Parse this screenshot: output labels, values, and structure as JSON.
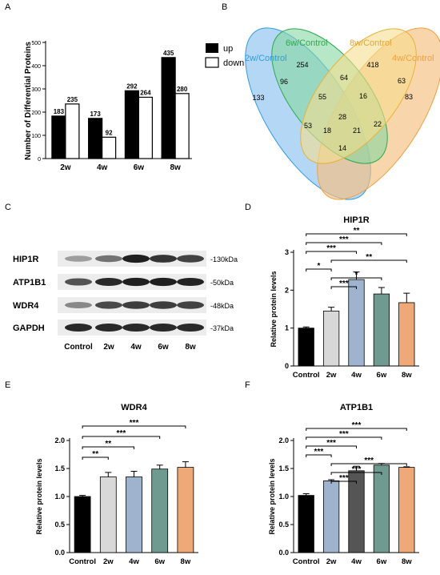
{
  "panels": {
    "A": "A",
    "B": "B",
    "C": "C",
    "D": "D",
    "E": "E",
    "F": "F"
  },
  "chart_data": [
    {
      "id": "A",
      "type": "bar",
      "title": "",
      "xlabel": "",
      "ylabel": "Number of Differential Proteins",
      "categories": [
        "2w",
        "4w",
        "6w",
        "8w"
      ],
      "yticks": [
        "0",
        "100",
        "200",
        "300",
        "400",
        "500"
      ],
      "ylim": [
        0,
        500
      ],
      "legend_position": "right",
      "series": [
        {
          "name": "up",
          "values": [
            183,
            173,
            292,
            435
          ],
          "color": "#000000"
        },
        {
          "name": "down",
          "values": [
            235,
            92,
            264,
            280
          ],
          "color": "#ffffff"
        }
      ],
      "value_labels": {
        "up": [
          "183",
          "173",
          "292",
          "435"
        ],
        "down": [
          "235",
          "92",
          "264",
          "280"
        ]
      }
    },
    {
      "id": "B",
      "type": "venn",
      "sets": [
        {
          "name": "2w/Control",
          "color": "#2f9be0",
          "fill": "#8cc2f0"
        },
        {
          "name": "6w/Control",
          "color": "#2fa84f",
          "fill": "#86d7a0"
        },
        {
          "name": "8w/Control",
          "color": "#e8b23a",
          "fill": "#f5de8e"
        },
        {
          "name": "4w/Control",
          "color": "#f0a040",
          "fill": "#f6bf7e"
        }
      ],
      "regions": [
        "133",
        "254",
        "418",
        "83",
        "96",
        "64",
        "63",
        "55",
        "16",
        "28",
        "53",
        "18",
        "21",
        "22",
        "14"
      ]
    },
    {
      "id": "C",
      "type": "blot",
      "rows": [
        {
          "label": "HIP1R",
          "marker": "-130kDa",
          "intensities": [
            0.35,
            0.55,
            0.95,
            0.85,
            0.78
          ]
        },
        {
          "label": "ATP1B1",
          "marker": "-50kDa",
          "intensities": [
            0.7,
            0.9,
            0.95,
            0.95,
            0.93
          ]
        },
        {
          "label": "WDR4",
          "marker": "-48kDa",
          "intensities": [
            0.45,
            0.75,
            0.8,
            0.8,
            0.78
          ]
        },
        {
          "label": "GAPDH",
          "marker": "-37kDa",
          "intensities": [
            0.9,
            0.9,
            0.9,
            0.9,
            0.9
          ]
        }
      ],
      "lanes": [
        "Control",
        "2w",
        "4w",
        "6w",
        "8w"
      ]
    },
    {
      "id": "D",
      "type": "bar",
      "title": "HIP1R",
      "xlabel": "",
      "ylabel": "Relative protein levels",
      "categories": [
        "Control",
        "2w",
        "4w",
        "6w",
        "8w"
      ],
      "values": [
        1.0,
        1.45,
        2.28,
        1.9,
        1.67
      ],
      "errors": [
        0.03,
        0.1,
        0.2,
        0.17,
        0.25
      ],
      "colors": [
        "#000000",
        "#d8d8d8",
        "#9fb3cf",
        "#6f9a90",
        "#efa877"
      ],
      "ylim": [
        0,
        3
      ],
      "yticks": [
        "0",
        "1",
        "2",
        "3"
      ],
      "brackets": [
        {
          "from": 0,
          "to": 4,
          "label": "**"
        },
        {
          "from": 0,
          "to": 3,
          "label": "***"
        },
        {
          "from": 0,
          "to": 2,
          "label": "***"
        },
        {
          "from": 1,
          "to": 4,
          "label": "**"
        },
        {
          "from": 0,
          "to": 1,
          "label": "*"
        },
        {
          "from": 1,
          "to": 3,
          "label": "*"
        },
        {
          "from": 1,
          "to": 2,
          "label": "***"
        }
      ]
    },
    {
      "id": "E",
      "type": "bar",
      "title": "WDR4",
      "xlabel": "",
      "ylabel": "Relative protein levels",
      "categories": [
        "Control",
        "2w",
        "4w",
        "6w",
        "8w"
      ],
      "values": [
        1.0,
        1.35,
        1.35,
        1.49,
        1.52
      ],
      "errors": [
        0.02,
        0.08,
        0.1,
        0.07,
        0.1
      ],
      "colors": [
        "#000000",
        "#d8d8d8",
        "#9fb3cf",
        "#6f9a90",
        "#efa877"
      ],
      "ylim": [
        0,
        2
      ],
      "yticks": [
        "0.0",
        "0.5",
        "1.0",
        "1.5",
        "2.0"
      ],
      "brackets": [
        {
          "from": 0,
          "to": 4,
          "label": "***"
        },
        {
          "from": 0,
          "to": 3,
          "label": "***"
        },
        {
          "from": 0,
          "to": 2,
          "label": "**"
        },
        {
          "from": 0,
          "to": 1,
          "label": "**"
        }
      ]
    },
    {
      "id": "F",
      "type": "bar",
      "title": "ATP1B1",
      "xlabel": "",
      "ylabel": "Relative protein levels",
      "categories": [
        "Control",
        "2w",
        "4w",
        "6w",
        "8w"
      ],
      "values": [
        1.02,
        1.28,
        1.46,
        1.56,
        1.52
      ],
      "errors": [
        0.03,
        0.02,
        0.08,
        0.03,
        0.01
      ],
      "colors": [
        "#000000",
        "#9fb3cf",
        "#555555",
        "#6f9a90",
        "#efa877"
      ],
      "ylim": [
        0,
        2
      ],
      "yticks": [
        "0.0",
        "0.5",
        "1.0",
        "1.5",
        "2.0"
      ],
      "brackets": [
        {
          "from": 0,
          "to": 4,
          "label": "***"
        },
        {
          "from": 0,
          "to": 3,
          "label": "***"
        },
        {
          "from": 0,
          "to": 2,
          "label": "***"
        },
        {
          "from": 0,
          "to": 1,
          "label": "***"
        },
        {
          "from": 1,
          "to": 4,
          "label": "***"
        },
        {
          "from": 1,
          "to": 3,
          "label": "***"
        },
        {
          "from": 1,
          "to": 2,
          "label": "***"
        }
      ]
    }
  ]
}
